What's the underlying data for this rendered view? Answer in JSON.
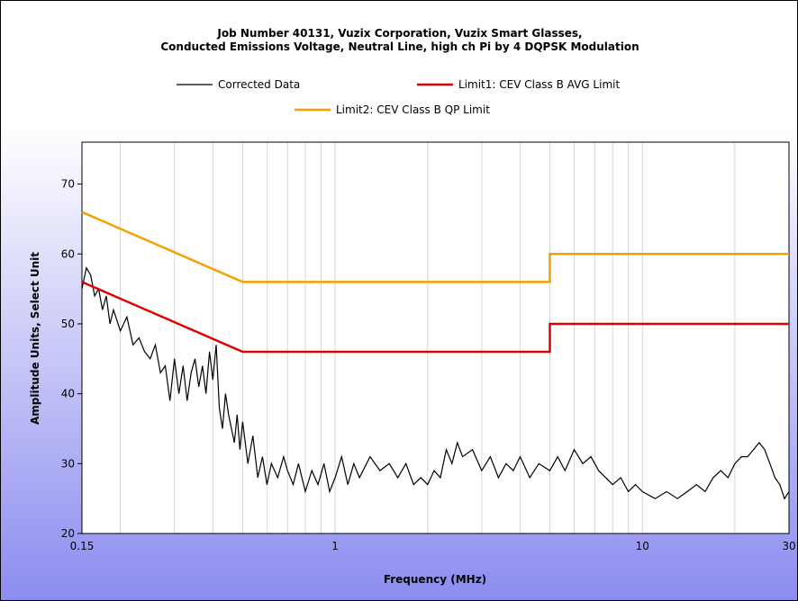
{
  "chart_data": {
    "type": "line",
    "title": [
      "Job Number 40131, Vuzix Corporation, Vuzix Smart Glasses,",
      "Conducted Emissions Voltage, Neutral Line, high ch Pi by 4 DQPSK Modulation"
    ],
    "xlabel": "Frequency (MHz)",
    "ylabel": "Amplitude Units, Select Unit",
    "xscale": "log",
    "xlim": [
      0.15,
      30
    ],
    "ylim": [
      20,
      76
    ],
    "xticks": [
      0.15,
      1,
      10,
      30
    ],
    "xminor": [
      0.2,
      0.3,
      0.4,
      0.5,
      0.6,
      0.7,
      0.8,
      0.9,
      2,
      3,
      4,
      5,
      6,
      7,
      8,
      9,
      20
    ],
    "yticks": [
      20,
      30,
      40,
      50,
      60,
      70
    ],
    "series": [
      {
        "name": "Corrected Data",
        "color": "#000000",
        "x": [
          0.15,
          0.155,
          0.16,
          0.165,
          0.17,
          0.175,
          0.18,
          0.185,
          0.19,
          0.2,
          0.21,
          0.22,
          0.23,
          0.24,
          0.25,
          0.26,
          0.27,
          0.28,
          0.29,
          0.3,
          0.31,
          0.32,
          0.33,
          0.34,
          0.35,
          0.36,
          0.37,
          0.38,
          0.39,
          0.4,
          0.41,
          0.42,
          0.43,
          0.44,
          0.45,
          0.46,
          0.47,
          0.48,
          0.49,
          0.5,
          0.52,
          0.54,
          0.56,
          0.58,
          0.6,
          0.62,
          0.65,
          0.68,
          0.7,
          0.73,
          0.76,
          0.8,
          0.84,
          0.88,
          0.92,
          0.96,
          1.0,
          1.05,
          1.1,
          1.15,
          1.2,
          1.3,
          1.4,
          1.5,
          1.6,
          1.7,
          1.8,
          1.9,
          2.0,
          2.1,
          2.2,
          2.3,
          2.4,
          2.5,
          2.6,
          2.8,
          3.0,
          3.2,
          3.4,
          3.6,
          3.8,
          4.0,
          4.3,
          4.6,
          5.0,
          5.3,
          5.6,
          6.0,
          6.4,
          6.8,
          7.2,
          7.6,
          8.0,
          8.5,
          9.0,
          9.5,
          10,
          11,
          12,
          13,
          14,
          15,
          16,
          17,
          18,
          19,
          20,
          21,
          22,
          23,
          24,
          25,
          26,
          27,
          28,
          29,
          30
        ],
        "values": [
          55,
          58,
          57,
          54,
          55,
          52,
          54,
          50,
          52,
          49,
          51,
          47,
          48,
          46,
          45,
          47,
          43,
          44,
          39,
          45,
          40,
          44,
          39,
          43,
          45,
          41,
          44,
          40,
          46,
          42,
          47,
          38,
          35,
          40,
          37,
          35,
          33,
          37,
          32,
          36,
          30,
          34,
          28,
          31,
          27,
          30,
          28,
          31,
          29,
          27,
          30,
          26,
          29,
          27,
          30,
          26,
          28,
          31,
          27,
          30,
          28,
          31,
          29,
          30,
          28,
          30,
          27,
          28,
          27,
          29,
          28,
          32,
          30,
          33,
          31,
          32,
          29,
          31,
          28,
          30,
          29,
          31,
          28,
          30,
          29,
          31,
          29,
          32,
          30,
          31,
          29,
          28,
          27,
          28,
          26,
          27,
          26,
          25,
          26,
          25,
          26,
          27,
          26,
          28,
          29,
          28,
          30,
          31,
          31,
          32,
          33,
          32,
          30,
          28,
          27,
          25,
          26
        ]
      },
      {
        "name": "Limit1: CEV Class B AVG Limit",
        "color": "#e00000",
        "x": [
          0.15,
          0.5,
          5,
          5,
          30
        ],
        "values": [
          56,
          46,
          46,
          50,
          50
        ]
      },
      {
        "name": "Limit2: CEV Class B QP Limit",
        "color": "#f5a000",
        "x": [
          0.15,
          0.5,
          5,
          5,
          30
        ],
        "values": [
          66,
          56,
          56,
          60,
          60
        ]
      }
    ]
  }
}
